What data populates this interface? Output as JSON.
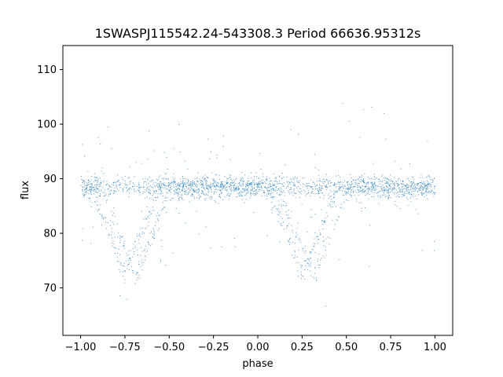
{
  "chart_data": {
    "type": "scatter",
    "title": "1SWASPJ115542.24-543308.3 Period 66636.95312s",
    "xlabel": "phase",
    "ylabel": "flux",
    "xlim": [
      -1.1,
      1.1
    ],
    "ylim": [
      61.3,
      114.4
    ],
    "xticks": [
      -1.0,
      -0.75,
      -0.5,
      -0.25,
      0.0,
      0.25,
      0.5,
      0.75,
      1.0
    ],
    "xtick_labels": [
      "−1.00",
      "−0.75",
      "−0.50",
      "−0.25",
      "0.00",
      "0.25",
      "0.50",
      "0.75",
      "1.00"
    ],
    "yticks": [
      70,
      80,
      90,
      100,
      110
    ],
    "ytick_labels": [
      "70",
      "80",
      "90",
      "100",
      "110"
    ],
    "grid": false,
    "marker_color": "#1f77b4",
    "series": [
      {
        "baseline_flux": 88.5,
        "scatter_sd": 1.0,
        "eclipses": [
          {
            "center_phase": -0.75,
            "min_flux": 73.0
          },
          {
            "center_phase": -0.69,
            "min_flux": 72.2
          },
          {
            "center_phase": 0.25,
            "min_flux": 73.0
          },
          {
            "center_phase": 0.31,
            "min_flux": 72.2
          }
        ],
        "eclipse_half_width": 0.2
      }
    ]
  }
}
